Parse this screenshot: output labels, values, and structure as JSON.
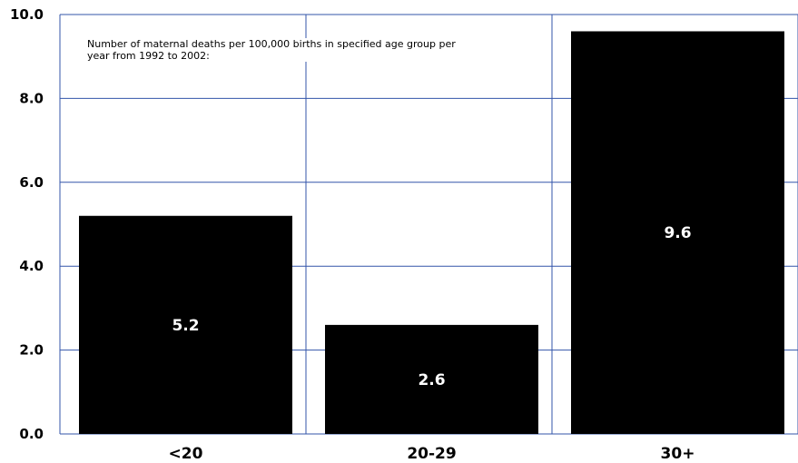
{
  "chart_data": {
    "type": "bar",
    "categories": [
      "<20",
      "20-29",
      "30+"
    ],
    "values": [
      5.2,
      2.6,
      9.6
    ],
    "data_labels": [
      "5.2",
      "2.6",
      "9.6"
    ],
    "ylim": [
      0,
      10
    ],
    "yticks": [
      "0.0",
      "2.0",
      "4.0",
      "6.0",
      "8.0",
      "10.0"
    ],
    "annotation": "Number of maternal deaths per 100,000 births in specified age group per year from 1992 to 2002:",
    "grid": true,
    "colors": {
      "bar": "#000000",
      "grid": "#3355aa",
      "data_label": "#ffffff"
    }
  }
}
